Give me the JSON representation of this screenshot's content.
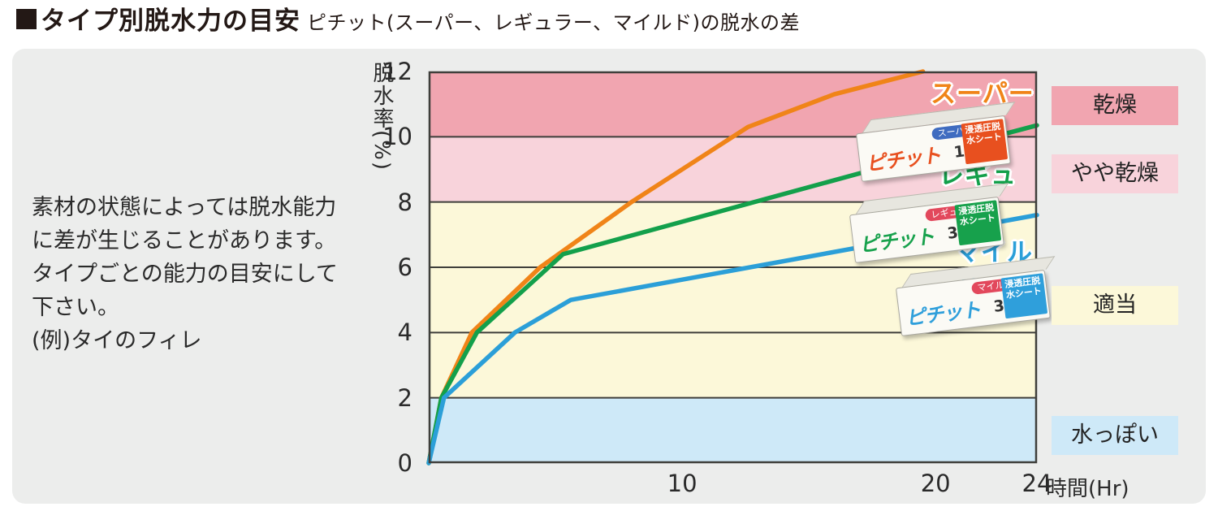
{
  "header": {
    "title": "タイプ別脱水力の目安",
    "subtitle": "ピチット(スーパー、レギュラー、マイルド)の脱水の差"
  },
  "note": "素材の状態によっては脱水能力\nに差が生じることがあります。\nタイプごとの能力の目安にして\n下さい。\n(例)タイのフィレ",
  "chart_data": {
    "type": "line",
    "title": "タイプ別脱水力の目安",
    "xlabel": "時間(Hr)",
    "ylabel": "脱水率(%)",
    "xlim": [
      0,
      24
    ],
    "ylim": [
      0,
      12
    ],
    "xticks": [
      10,
      20,
      24
    ],
    "yticks": [
      0,
      2,
      4,
      6,
      8,
      10,
      12
    ],
    "grid": true,
    "grid_color": "#3f3f3b",
    "bands": [
      {
        "label": "乾燥",
        "from": 10,
        "to": 12,
        "color": "#f1a5b0"
      },
      {
        "label": "やや乾燥",
        "from": 8,
        "to": 10,
        "color": "#f8d3db"
      },
      {
        "label": "適当",
        "from": 2,
        "to": 8,
        "color": "#fcf8d9"
      },
      {
        "label": "水っぽい",
        "from": 0,
        "to": 2,
        "color": "#cee9f8"
      }
    ],
    "series": [
      {
        "name": "スーパー",
        "color": "#f08418",
        "points": [
          [
            0,
            0
          ],
          [
            0.5,
            2
          ],
          [
            1.7,
            4
          ],
          [
            4.4,
            6
          ],
          [
            8,
            8
          ],
          [
            12.6,
            10.3
          ],
          [
            16,
            11.3
          ],
          [
            19.5,
            12
          ]
        ]
      },
      {
        "name": "レギュラー",
        "color": "#13a04b",
        "points": [
          [
            0,
            0
          ],
          [
            0.5,
            2
          ],
          [
            1.9,
            4
          ],
          [
            5.3,
            6.4
          ],
          [
            22.3,
            10
          ],
          [
            24,
            10.35
          ]
        ]
      },
      {
        "name": "マイルド",
        "color": "#2b9fd8",
        "points": [
          [
            0,
            0
          ],
          [
            0.6,
            2
          ],
          [
            3.4,
            4
          ],
          [
            5.6,
            5
          ],
          [
            24,
            7.6
          ]
        ]
      }
    ]
  },
  "products": [
    {
      "brand": "ピチット",
      "count": "18",
      "variant": "スーパー",
      "ribbon": "浸透圧脱水シート",
      "accent": "#e8501f",
      "badge_color": "#3f6cc0"
    },
    {
      "brand": "ピチット",
      "count": "32",
      "variant": "レギュラー",
      "ribbon": "浸透圧脱水シート",
      "accent": "#17a14c",
      "badge_color": "#e2485c"
    },
    {
      "brand": "ピチット",
      "count": "30",
      "variant": "マイルド",
      "ribbon": "浸透圧脱水シート",
      "accent": "#2f9fdb",
      "badge_color": "#e2485c"
    }
  ]
}
